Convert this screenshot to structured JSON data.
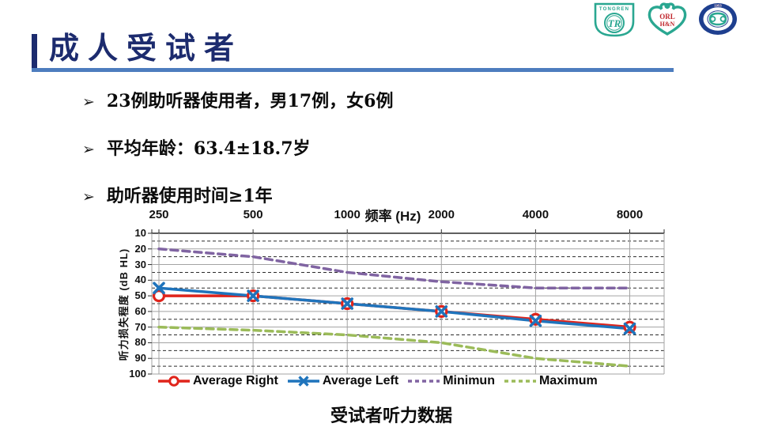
{
  "slide": {
    "title": "成人受试者",
    "caption": "受试者听力数据",
    "bullet_marker": "➢",
    "bullets": [
      "23例助听器使用者，男17例，女6例",
      "平均年龄：63.4±18.7岁",
      "助听器使用时间≥1年"
    ]
  },
  "logos": {
    "tongren_text": "TONGREN",
    "tongren_monogram": "TR",
    "orlhan_line1": "ORL",
    "orlhan_line2": "H&N",
    "seal_year": "1953"
  },
  "theme": {
    "title_color": "#1c2b6e",
    "rule_color": "#4d7dbe",
    "logo_teal": "#2aa791",
    "logo_navy": "#1e3f8f",
    "logo_red": "#c0272d"
  },
  "chart_data": {
    "type": "line",
    "title": "",
    "x_axis_title": "频率 (Hz)",
    "y_axis_title": "听力损失程度 (dB  HL)",
    "categories": [
      250,
      500,
      1000,
      2000,
      4000,
      8000
    ],
    "y_ticks": [
      10,
      20,
      30,
      40,
      50,
      60,
      70,
      80,
      90,
      100
    ],
    "ylim": [
      10,
      100
    ],
    "y_inverted": true,
    "grid": "major-solid-minor-dashed",
    "legend_position": "bottom",
    "series": [
      {
        "name": "Average Right",
        "color": "#e0241b",
        "marker": "circle",
        "dash": false,
        "values": [
          50,
          50,
          55,
          60,
          65,
          70
        ]
      },
      {
        "name": "Average Left",
        "color": "#1f74bc",
        "marker": "x",
        "dash": false,
        "values": [
          45,
          50,
          55,
          60,
          66,
          71
        ]
      },
      {
        "name": "Minimun",
        "color": "#8064a2",
        "marker": "none",
        "dash": true,
        "values": [
          20,
          25,
          35,
          41,
          45,
          45
        ]
      },
      {
        "name": "Maximum",
        "color": "#9bbb59",
        "marker": "none",
        "dash": true,
        "values": [
          70,
          72,
          75,
          80,
          90,
          95
        ]
      }
    ]
  }
}
